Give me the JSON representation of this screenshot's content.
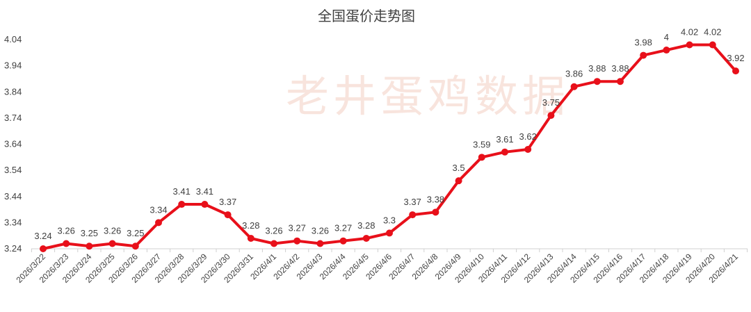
{
  "chart_data": {
    "type": "line",
    "title": "全国蛋价走势图",
    "watermark": "老井蛋鸡数据",
    "xlabel": "",
    "ylabel": "",
    "ylim": [
      3.24,
      4.04
    ],
    "yticks": [
      "3.24",
      "3.34",
      "3.44",
      "3.54",
      "3.64",
      "3.74",
      "3.84",
      "3.94",
      "4.04"
    ],
    "grid": false,
    "legend": "none",
    "categories": [
      "2026/3/22",
      "2026/3/23",
      "2026/3/24",
      "2026/3/25",
      "2026/3/26",
      "2026/3/27",
      "2026/3/28",
      "2026/3/29",
      "2026/3/30",
      "2026/3/31",
      "2026/4/1",
      "2026/4/2",
      "2026/4/3",
      "2026/4/4",
      "2026/4/5",
      "2026/4/6",
      "2026/4/7",
      "2026/4/8",
      "2026/4/9",
      "2026/4/10",
      "2026/4/11",
      "2026/4/12",
      "2026/4/13",
      "2026/4/14",
      "2026/4/15",
      "2026/4/16",
      "2026/4/17",
      "2026/4/18",
      "2026/4/19",
      "2026/4/20",
      "2026/4/21"
    ],
    "series": [
      {
        "color": "#e8101a",
        "values": [
          3.24,
          3.26,
          3.25,
          3.26,
          3.25,
          3.34,
          3.41,
          3.41,
          3.37,
          3.28,
          3.26,
          3.27,
          3.26,
          3.27,
          3.28,
          3.3,
          3.37,
          3.38,
          3.5,
          3.59,
          3.61,
          3.62,
          3.75,
          3.86,
          3.88,
          3.88,
          3.98,
          4,
          4.02,
          4.02,
          3.92
        ],
        "labels": [
          "3.24",
          "3.26",
          "3.25",
          "3.26",
          "3.25",
          "3.34",
          "3.41",
          "3.41",
          "3.37",
          "3.28",
          "3.26",
          "3.27",
          "3.26",
          "3.27",
          "3.28",
          "3.3",
          "3.37",
          "3.38",
          "3.5",
          "3.59",
          "3.61",
          "3.62",
          "3.75",
          "3.86",
          "3.88",
          "3.88",
          "3.98",
          "4",
          "4.02",
          "4.02",
          "3.92"
        ]
      }
    ]
  }
}
